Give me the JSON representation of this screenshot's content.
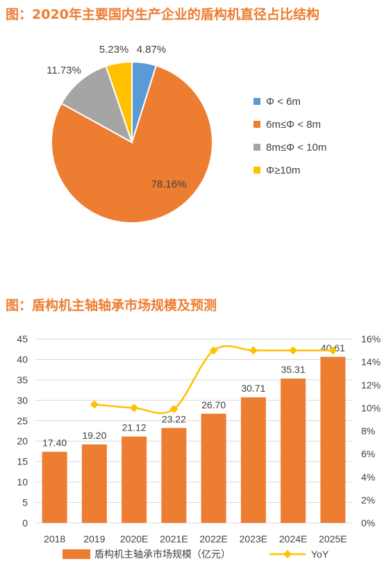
{
  "titles": {
    "pie": "图：2020年主要国内生产企业的盾构机直径占比结构",
    "bar": "图：盾构机主轴轴承市场规模及预测"
  },
  "colors": {
    "title": "#ED7D31",
    "slices": [
      "#5B9BD5",
      "#ED7D31",
      "#A5A5A5",
      "#FFC000"
    ],
    "bar": "#ED7D31",
    "line": "#FFC000"
  },
  "chart_data": [
    {
      "type": "pie",
      "title": "图：2020年主要国内生产企业的盾构机直径占比结构",
      "labels": [
        "Φ < 6m",
        "6m≤Φ < 8m",
        "8m≤Φ < 10m",
        "Φ≥10m"
      ],
      "values": [
        4.87,
        78.16,
        11.73,
        5.23
      ],
      "value_labels": [
        "4.87%",
        "78.16%",
        "11.73%",
        "5.23%"
      ],
      "legend": "right"
    },
    {
      "type": "bar",
      "title": "图：盾构机主轴轴承市场规模及预测",
      "categories": [
        "2018",
        "2019",
        "2020E",
        "2021E",
        "2022E",
        "2023E",
        "2024E",
        "2025E"
      ],
      "series": [
        {
          "name": "盾构机主轴承市场规模（亿元）",
          "type": "bar",
          "axis": "left",
          "values": [
            17.4,
            19.2,
            21.12,
            23.22,
            26.7,
            30.71,
            35.31,
            40.61
          ],
          "labels": [
            "17.40",
            "19.20",
            "21.12",
            "23.22",
            "26.70",
            "30.71",
            "35.31",
            "40.61"
          ]
        },
        {
          "name": "YoY",
          "type": "line",
          "axis": "right",
          "values": [
            null,
            10.3,
            10.0,
            9.9,
            15.0,
            15.0,
            15.0,
            15.0
          ]
        }
      ],
      "ylim_left": [
        0,
        45
      ],
      "yticks_left": [
        "0",
        "5",
        "10",
        "15",
        "20",
        "25",
        "30",
        "35",
        "40",
        "45"
      ],
      "ylim_right": [
        0,
        16
      ],
      "yticks_right": [
        "0%",
        "2%",
        "4%",
        "6%",
        "8%",
        "10%",
        "12%",
        "14%",
        "16%"
      ],
      "grid": true,
      "legend": "bottom"
    }
  ]
}
